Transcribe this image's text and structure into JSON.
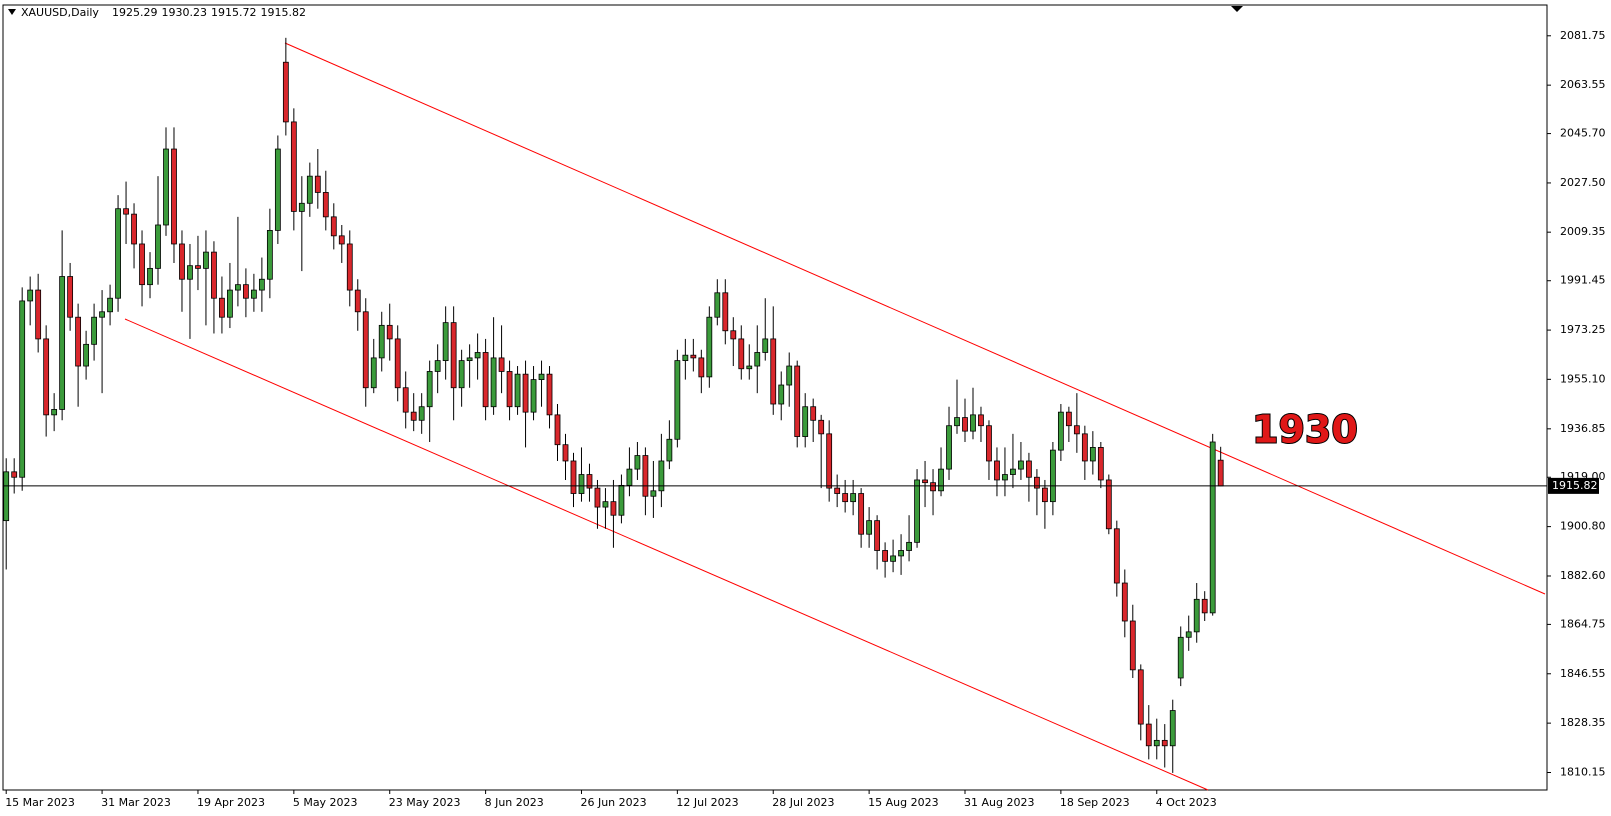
{
  "chart_data": {
    "type": "candlestick",
    "title": "XAUUSD,Daily",
    "annotation": "1930",
    "up_color": "#3b9b3b",
    "down_color": "#d9272c",
    "categories": [
      "15 Mar 2023",
      null,
      null,
      null,
      null,
      null,
      null,
      null,
      null,
      null,
      null,
      null,
      "31 Mar 2023",
      null,
      null,
      null,
      null,
      null,
      null,
      null,
      null,
      null,
      null,
      null,
      "19 Apr 2023",
      null,
      null,
      null,
      null,
      null,
      null,
      null,
      null,
      null,
      null,
      null,
      "5 May 2023",
      null,
      null,
      null,
      null,
      null,
      null,
      null,
      null,
      null,
      null,
      null,
      "23 May 2023",
      null,
      null,
      null,
      null,
      null,
      null,
      null,
      null,
      null,
      null,
      null,
      "8 Jun 2023",
      null,
      null,
      null,
      null,
      null,
      null,
      null,
      null,
      null,
      null,
      null,
      "26 Jun 2023",
      null,
      null,
      null,
      null,
      null,
      null,
      null,
      null,
      null,
      null,
      null,
      "12 Jul 2023",
      null,
      null,
      null,
      null,
      null,
      null,
      null,
      null,
      null,
      null,
      null,
      "28 Jul 2023",
      null,
      null,
      null,
      null,
      null,
      null,
      null,
      null,
      null,
      null,
      null,
      "15 Aug 2023",
      null,
      null,
      null,
      null,
      null,
      null,
      null,
      null,
      null,
      null,
      null,
      "31 Aug 2023",
      null,
      null,
      null,
      null,
      null,
      null,
      null,
      null,
      null,
      null,
      null,
      "18 Sep 2023",
      null,
      null,
      null,
      null,
      null,
      null,
      null,
      null,
      null,
      null,
      null,
      "4 Oct 2023",
      null,
      null,
      null,
      null,
      null,
      null,
      null,
      null
    ],
    "open": [
      1903,
      1921,
      1919,
      1984,
      1988,
      1970,
      1942,
      1944,
      1993,
      1978,
      1960,
      1968,
      1978,
      1980,
      1985,
      2018,
      2016,
      2005,
      1990,
      1996,
      2012,
      2040,
      2005,
      1992,
      1997,
      1996,
      2002,
      1985,
      1978,
      1988,
      1990,
      1985,
      1988,
      1992,
      2010,
      2072,
      2050,
      2017,
      2020,
      2030,
      2024,
      2015,
      2008,
      2005,
      1988,
      1980,
      1952,
      1963,
      1975,
      1970,
      1952,
      1943,
      1940,
      1945,
      1958,
      1962,
      1976,
      1952,
      1962,
      1963,
      1965,
      1945,
      1963,
      1958,
      1945,
      1957,
      1943,
      1955,
      1957,
      1942,
      1931,
      1925,
      1913,
      1920,
      1915,
      1908,
      1910,
      1905,
      1916,
      1922,
      1927,
      1912,
      1914,
      1925,
      1933,
      1962,
      1964,
      1963,
      1956,
      1978,
      1987,
      1973,
      1970,
      1959,
      1960,
      1965,
      1970,
      1946,
      1953,
      1960,
      1934,
      1945,
      1940,
      1935,
      1915,
      1913,
      1910,
      1913,
      1898,
      1903,
      1892,
      1888,
      1890,
      1892,
      1895,
      1918,
      1917,
      1914,
      1922,
      1938,
      1941,
      1936,
      1942,
      1938,
      1925,
      1918,
      1920,
      1922,
      1925,
      1919,
      1915,
      1910,
      1929,
      1943,
      1938,
      1935,
      1925,
      1930,
      1918,
      1900,
      1880,
      1866,
      1848,
      1828,
      1820,
      1822,
      1820,
      1845,
      1860,
      1862,
      1874,
      1869,
      1925.29
    ],
    "high": [
      1926,
      1926,
      1989,
      1993,
      1994,
      1975,
      1950,
      2010,
      1998,
      1983,
      1973,
      1983,
      1988,
      1990,
      2023,
      2028,
      2020,
      2010,
      2002,
      2030,
      2048,
      2048,
      2010,
      2005,
      2008,
      2010,
      2006,
      1993,
      1998,
      2015,
      1996,
      1994,
      2000,
      2018,
      2045,
      2081,
      2055,
      2030,
      2035,
      2040,
      2032,
      2020,
      2012,
      2010,
      1992,
      1985,
      1970,
      1980,
      1983,
      1975,
      1958,
      1950,
      1950,
      1962,
      1968,
      1982,
      1982,
      1966,
      1968,
      1972,
      1970,
      1978,
      1975,
      1962,
      1960,
      1962,
      1960,
      1962,
      1960,
      1946,
      1935,
      1928,
      1930,
      1924,
      1918,
      1915,
      1918,
      1920,
      1930,
      1932,
      1930,
      1925,
      1935,
      1940,
      1966,
      1970,
      1970,
      1966,
      1982,
      1992,
      1992,
      1978,
      1975,
      1968,
      1975,
      1985,
      1982,
      1958,
      1965,
      1962,
      1950,
      1948,
      1942,
      1940,
      1920,
      1918,
      1918,
      1915,
      1908,
      1905,
      1895,
      1896,
      1898,
      1905,
      1922,
      1925,
      1922,
      1930,
      1945,
      1955,
      1948,
      1952,
      1945,
      1940,
      1930,
      1930,
      1935,
      1932,
      1928,
      1922,
      1918,
      1932,
      1946,
      1945,
      1950,
      1938,
      1936,
      1932,
      1920,
      1903,
      1885,
      1872,
      1850,
      1835,
      1830,
      1828,
      1837,
      1864,
      1868,
      1880,
      1877,
      1935,
      1930.23
    ],
    "low": [
      1885,
      1913,
      1914,
      1975,
      1965,
      1934,
      1936,
      1940,
      1973,
      1945,
      1955,
      1962,
      1950,
      1975,
      1980,
      2005,
      1996,
      1982,
      1985,
      1990,
      2008,
      1998,
      1980,
      1970,
      1988,
      1975,
      1972,
      1972,
      1974,
      1982,
      1978,
      1980,
      1980,
      1985,
      2005,
      2045,
      2010,
      1995,
      2015,
      2018,
      2010,
      2003,
      1998,
      1982,
      1973,
      1945,
      1950,
      1958,
      1962,
      1947,
      1937,
      1936,
      1935,
      1932,
      1950,
      1955,
      1940,
      1945,
      1952,
      1955,
      1940,
      1942,
      1950,
      1940,
      1942,
      1930,
      1940,
      1945,
      1937,
      1925,
      1918,
      1908,
      1910,
      1910,
      1900,
      1900,
      1893,
      1902,
      1912,
      1918,
      1905,
      1904,
      1908,
      1922,
      1930,
      1955,
      1958,
      1950,
      1952,
      1975,
      1968,
      1960,
      1955,
      1955,
      1950,
      1962,
      1942,
      1940,
      1945,
      1930,
      1930,
      1932,
      1915,
      1910,
      1908,
      1906,
      1905,
      1893,
      1893,
      1885,
      1882,
      1884,
      1883,
      1888,
      1893,
      1908,
      1905,
      1912,
      1918,
      1935,
      1932,
      1933,
      1932,
      1918,
      1912,
      1912,
      1915,
      1918,
      1910,
      1905,
      1900,
      1905,
      1925,
      1932,
      1928,
      1918,
      1920,
      1915,
      1898,
      1875,
      1860,
      1845,
      1822,
      1815,
      1815,
      1812,
      1810,
      1842,
      1855,
      1858,
      1866,
      1868,
      1915.72
    ],
    "close": [
      1921,
      1919,
      1984,
      1988,
      1970,
      1942,
      1944,
      1993,
      1978,
      1960,
      1968,
      1978,
      1980,
      1985,
      2018,
      2016,
      2005,
      1990,
      1996,
      2012,
      2040,
      2005,
      1992,
      1997,
      1996,
      2002,
      1985,
      1978,
      1988,
      1990,
      1985,
      1988,
      1992,
      2010,
      2040,
      2050,
      2017,
      2020,
      2030,
      2024,
      2015,
      2008,
      2005,
      1988,
      1980,
      1952,
      1963,
      1975,
      1970,
      1952,
      1943,
      1940,
      1945,
      1958,
      1962,
      1976,
      1952,
      1962,
      1963,
      1965,
      1945,
      1963,
      1958,
      1945,
      1957,
      1943,
      1955,
      1957,
      1942,
      1931,
      1925,
      1913,
      1920,
      1915,
      1908,
      1910,
      1905,
      1916,
      1922,
      1927,
      1912,
      1914,
      1925,
      1933,
      1962,
      1964,
      1963,
      1956,
      1978,
      1987,
      1973,
      1970,
      1959,
      1960,
      1965,
      1970,
      1946,
      1953,
      1960,
      1934,
      1945,
      1940,
      1935,
      1915,
      1913,
      1910,
      1913,
      1898,
      1903,
      1892,
      1888,
      1890,
      1892,
      1895,
      1918,
      1917,
      1914,
      1922,
      1938,
      1941,
      1936,
      1942,
      1938,
      1925,
      1918,
      1920,
      1922,
      1925,
      1919,
      1915,
      1910,
      1929,
      1943,
      1938,
      1935,
      1925,
      1930,
      1918,
      1900,
      1880,
      1866,
      1848,
      1828,
      1820,
      1822,
      1820,
      1833,
      1860,
      1862,
      1874,
      1869,
      1932,
      1915.82
    ],
    "ylim": [
      1803.7,
      2093.1
    ],
    "yticks": [
      2081.75,
      2063.55,
      {
        "value": 2045.7,
        "label": "2045.70"
      },
      {
        "value": 2027.5,
        "label": "2027.50"
      },
      2009.35,
      1991.45,
      1973.25,
      {
        "value": 1955.1,
        "label": "1955.10"
      },
      1936.85,
      {
        "value": 1919,
        "label": "1919.00"
      },
      {
        "value": 1900.8,
        "label": "1900.80"
      },
      {
        "value": 1882.6,
        "label": "1882.60"
      },
      1864.75,
      1846.55,
      1828.35,
      1810.15
    ]
  }
}
